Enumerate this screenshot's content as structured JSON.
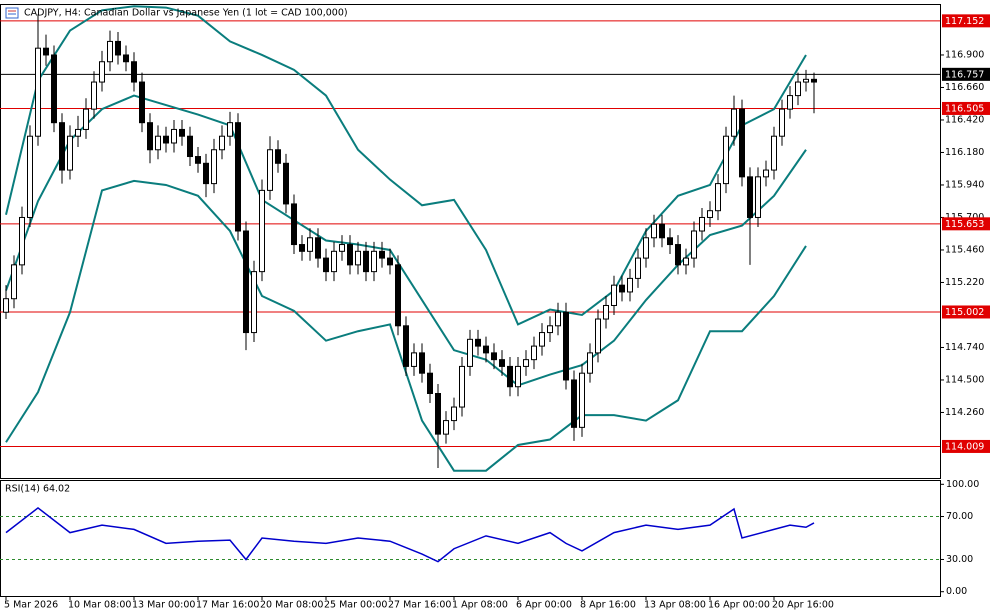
{
  "chart_data": {
    "type": "candlestick",
    "title": "CADJPY, H4:  Canadian Dollar vs Japanese Yen (1 lot = CAD 100,000)",
    "categories": [
      "5 Mar 2026",
      null,
      null,
      null,
      null,
      null,
      null,
      null,
      "10 Mar 08:00",
      null,
      null,
      null,
      null,
      null,
      null,
      null,
      "13 Mar 00:00",
      null,
      null,
      null,
      null,
      null,
      null,
      null,
      "17 Mar 16:00",
      null,
      null,
      null,
      null,
      null,
      null,
      null,
      "20 Mar 08:00",
      null,
      null,
      null,
      null,
      null,
      null,
      null,
      "25 Mar 00:00",
      null,
      null,
      null,
      null,
      null,
      null,
      null,
      "27 Mar 16:00",
      null,
      null,
      null,
      null,
      null,
      null,
      null,
      "1 Apr 08:00",
      null,
      null,
      null,
      null,
      null,
      null,
      null,
      "6 Apr 00:00",
      null,
      null,
      null,
      null,
      null,
      null,
      null,
      "8 Apr 16:00",
      null,
      null,
      null,
      null,
      null,
      null,
      null,
      "13 Apr 08:00",
      null,
      null,
      null,
      null,
      null,
      null,
      null,
      "16 Apr 00:00",
      null,
      null,
      null,
      null,
      null,
      null,
      null,
      "20 Apr 16:00",
      null,
      null,
      null,
      null,
      null
    ],
    "open": [
      115.0,
      115.1,
      115.35,
      115.7,
      116.3,
      116.95,
      116.9,
      116.4,
      116.05,
      116.3,
      116.35,
      116.5,
      116.7,
      116.85,
      117.0,
      116.9,
      116.85,
      116.7,
      116.4,
      116.2,
      116.3,
      116.25,
      116.35,
      116.3,
      116.15,
      116.1,
      115.95,
      116.2,
      116.3,
      116.4,
      115.6,
      114.85,
      115.3,
      115.9,
      116.2,
      116.1,
      115.8,
      115.5,
      115.45,
      115.55,
      115.4,
      115.3,
      115.45,
      115.5,
      115.35,
      115.45,
      115.3,
      115.45,
      115.4,
      115.35,
      114.9,
      114.6,
      114.7,
      114.55,
      114.4,
      114.1,
      114.2,
      114.3,
      114.6,
      114.8,
      114.75,
      114.7,
      114.65,
      114.6,
      114.45,
      114.6,
      114.65,
      114.75,
      114.85,
      114.9,
      115.0,
      114.5,
      114.15,
      114.55,
      114.7,
      114.95,
      115.05,
      115.2,
      115.15,
      115.25,
      115.4,
      115.55,
      115.65,
      115.55,
      115.5,
      115.35,
      115.4,
      115.6,
      115.7,
      115.75,
      115.95,
      116.3,
      116.5,
      116.0,
      115.7,
      116.0,
      116.05,
      116.3,
      116.5,
      116.6,
      116.7,
      116.72
    ],
    "high": [
      115.2,
      115.42,
      115.78,
      116.38,
      117.2,
      117.05,
      116.97,
      116.47,
      116.38,
      116.45,
      116.58,
      116.78,
      116.93,
      117.08,
      117.07,
      116.97,
      116.92,
      116.77,
      116.47,
      116.38,
      116.37,
      116.42,
      116.42,
      116.37,
      116.22,
      116.17,
      116.28,
      116.38,
      116.48,
      116.47,
      115.67,
      115.38,
      115.98,
      116.3,
      116.27,
      116.17,
      115.87,
      115.57,
      115.62,
      115.62,
      115.47,
      115.52,
      115.57,
      115.57,
      115.52,
      115.52,
      115.52,
      115.52,
      115.47,
      115.42,
      114.97,
      114.77,
      114.77,
      114.62,
      114.47,
      114.27,
      114.37,
      114.67,
      114.87,
      114.87,
      114.82,
      114.77,
      114.72,
      114.67,
      114.67,
      114.72,
      114.82,
      114.92,
      114.97,
      115.07,
      115.07,
      114.57,
      114.62,
      114.77,
      115.02,
      115.12,
      115.27,
      115.27,
      115.32,
      115.47,
      115.62,
      115.72,
      115.72,
      115.62,
      115.57,
      115.47,
      115.67,
      115.77,
      115.82,
      116.02,
      116.37,
      116.6,
      116.57,
      116.07,
      116.07,
      116.12,
      116.37,
      116.57,
      116.67,
      116.77,
      116.79,
      116.77
    ],
    "low": [
      114.95,
      115.03,
      115.28,
      115.63,
      116.23,
      116.82,
      116.33,
      115.95,
      115.98,
      116.22,
      116.28,
      116.43,
      116.63,
      116.78,
      116.83,
      116.78,
      116.63,
      116.33,
      116.1,
      116.13,
      116.18,
      116.18,
      116.23,
      116.08,
      116.03,
      115.85,
      115.88,
      116.13,
      116.23,
      115.53,
      114.72,
      114.78,
      115.23,
      115.83,
      116.03,
      115.73,
      115.43,
      115.38,
      115.38,
      115.33,
      115.23,
      115.23,
      115.38,
      115.28,
      115.28,
      115.23,
      115.23,
      115.33,
      115.28,
      114.83,
      114.53,
      114.53,
      114.48,
      114.33,
      113.85,
      114.03,
      114.13,
      114.23,
      114.53,
      114.68,
      114.63,
      114.58,
      114.53,
      114.38,
      114.38,
      114.53,
      114.58,
      114.68,
      114.78,
      114.83,
      114.43,
      114.05,
      114.08,
      114.48,
      114.63,
      114.88,
      114.98,
      115.08,
      115.08,
      115.18,
      115.33,
      115.48,
      115.48,
      115.43,
      115.28,
      115.28,
      115.33,
      115.53,
      115.63,
      115.68,
      115.88,
      116.23,
      115.93,
      115.35,
      115.63,
      115.93,
      115.98,
      116.23,
      116.43,
      116.53,
      116.63,
      116.47
    ],
    "close": [
      115.1,
      115.35,
      115.7,
      116.3,
      116.95,
      116.9,
      116.4,
      116.05,
      116.3,
      116.35,
      116.5,
      116.7,
      116.85,
      117.0,
      116.9,
      116.85,
      116.7,
      116.4,
      116.2,
      116.3,
      116.25,
      116.35,
      116.3,
      116.15,
      116.1,
      115.95,
      116.2,
      116.3,
      116.4,
      115.6,
      114.85,
      115.3,
      115.9,
      116.2,
      116.1,
      115.8,
      115.5,
      115.45,
      115.55,
      115.4,
      115.3,
      115.45,
      115.5,
      115.35,
      115.45,
      115.3,
      115.45,
      115.4,
      115.35,
      114.9,
      114.6,
      114.7,
      114.55,
      114.4,
      114.1,
      114.2,
      114.3,
      114.6,
      114.8,
      114.75,
      114.7,
      114.65,
      114.6,
      114.45,
      114.6,
      114.65,
      114.75,
      114.85,
      114.9,
      115.0,
      114.5,
      114.15,
      114.55,
      114.7,
      114.95,
      115.05,
      115.2,
      115.15,
      115.25,
      115.4,
      115.55,
      115.65,
      115.55,
      115.5,
      115.35,
      115.4,
      115.6,
      115.7,
      115.75,
      115.95,
      116.3,
      116.5,
      116.0,
      115.7,
      116.0,
      116.05,
      116.3,
      116.5,
      116.6,
      116.7,
      116.72,
      116.7
    ],
    "up_color": "#ffffff",
    "down_color": "#000000",
    "ylim": [
      113.776,
      117.269
    ],
    "yticks": [
      {
        "value": 116.9,
        "label": "116.900"
      },
      {
        "value": 116.66,
        "label": "116.660"
      },
      {
        "value": 116.42,
        "label": "116.420"
      },
      {
        "value": 116.18,
        "label": "116.180"
      },
      {
        "value": 115.94,
        "label": "115.940"
      },
      {
        "value": 115.7,
        "label": "115.700"
      },
      {
        "value": 115.46,
        "label": "115.460"
      },
      {
        "value": 115.22,
        "label": "115.220"
      },
      {
        "value": 114.74,
        "label": "114.740"
      },
      {
        "value": 114.5,
        "label": "114.500"
      },
      {
        "value": 114.26,
        "label": "114.260"
      }
    ],
    "levels": [
      117.152,
      116.505,
      115.653,
      115.002,
      114.009
    ],
    "level_color": "#e00000",
    "last_price": 116.757,
    "last_color": "#000000",
    "bands": {
      "color": "#0a7d7d",
      "x": [
        0,
        4,
        8,
        12,
        16,
        20,
        24,
        28,
        32,
        36,
        40,
        44,
        48,
        52,
        56,
        60,
        64,
        68,
        72,
        76,
        80,
        84,
        88,
        92,
        96,
        100
      ],
      "upper": [
        115.72,
        116.71,
        117.08,
        117.23,
        117.26,
        117.25,
        117.19,
        117.0,
        116.9,
        116.79,
        116.6,
        116.2,
        115.98,
        115.79,
        115.83,
        115.46,
        114.91,
        115.02,
        114.98,
        115.16,
        115.6,
        115.86,
        115.94,
        116.38,
        116.5,
        116.9
      ],
      "middle": [
        115.16,
        115.82,
        116.27,
        116.5,
        116.6,
        116.53,
        116.46,
        116.38,
        115.83,
        115.68,
        115.53,
        115.5,
        115.46,
        115.09,
        114.72,
        114.65,
        114.46,
        114.54,
        114.61,
        114.79,
        115.09,
        115.35,
        115.57,
        115.64,
        115.86,
        116.2
      ],
      "lower": [
        114.04,
        114.41,
        115.0,
        115.9,
        115.97,
        115.94,
        115.86,
        115.6,
        115.12,
        115.01,
        114.79,
        114.86,
        114.91,
        114.2,
        113.83,
        113.83,
        114.02,
        114.06,
        114.24,
        114.24,
        114.2,
        114.35,
        114.86,
        114.86,
        115.12,
        115.49
      ]
    },
    "rsi": {
      "type": "line",
      "title": "RSI(14) 64.02",
      "color": "#0000cc",
      "x": [
        0,
        4,
        8,
        12,
        16,
        20,
        24,
        28,
        30,
        32,
        36,
        40,
        44,
        48,
        52,
        54,
        56,
        60,
        64,
        68,
        70,
        72,
        76,
        80,
        84,
        88,
        90,
        91,
        92,
        96,
        98,
        100,
        101
      ],
      "values": [
        55,
        78,
        55,
        62,
        58,
        45,
        47,
        48,
        30,
        50,
        47,
        45,
        50,
        47,
        35,
        28,
        40,
        52,
        45,
        55,
        45,
        38,
        55,
        62,
        58,
        62,
        72,
        77,
        50,
        58,
        62,
        60,
        64.02
      ],
      "ylim": [
        -4,
        104
      ],
      "yticks": [
        {
          "value": 100,
          "label": "100.00"
        },
        {
          "value": 70,
          "label": "70.00"
        },
        {
          "value": 30,
          "label": "30.00"
        },
        {
          "value": 0,
          "label": "0.00"
        }
      ],
      "levels": [
        70,
        30
      ],
      "level_color": "#2e8b2e"
    }
  }
}
